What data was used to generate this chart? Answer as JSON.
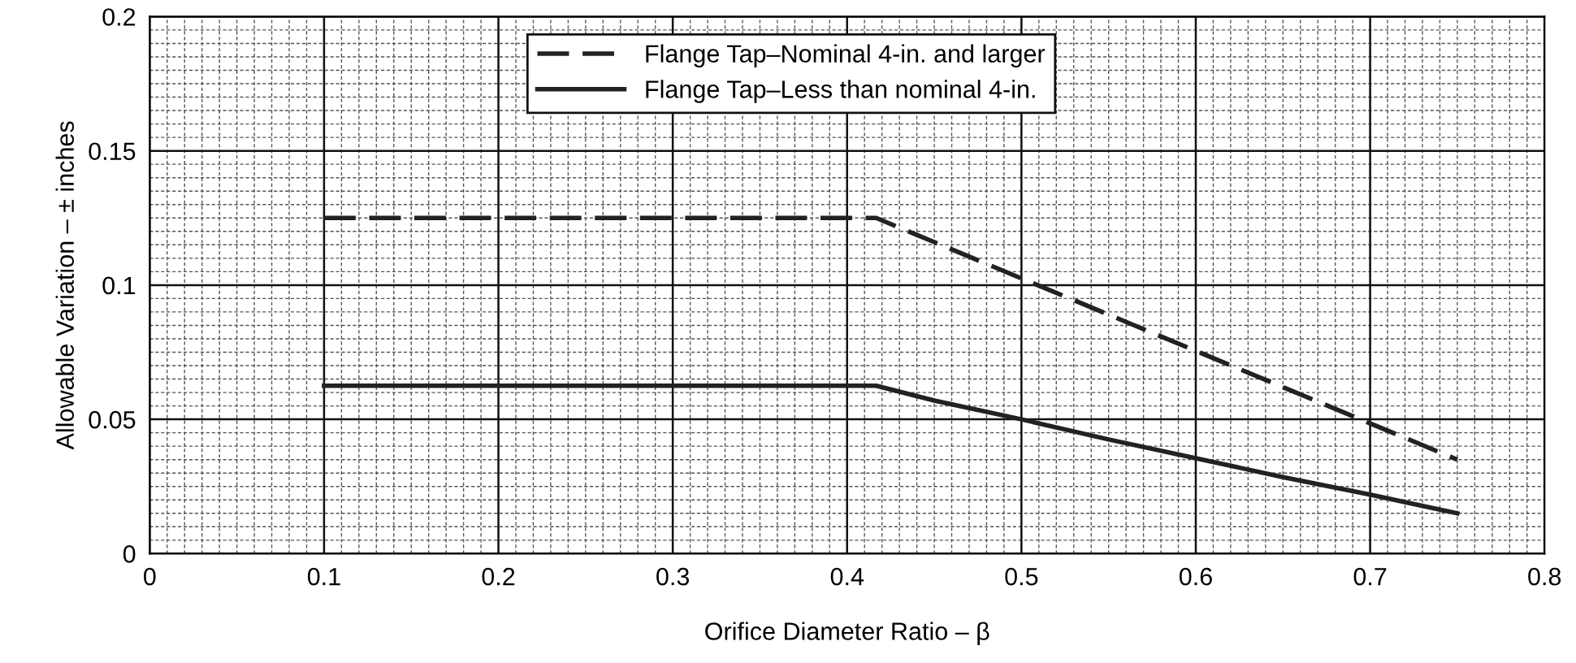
{
  "chart_data": {
    "type": "line",
    "xlabel": "Orifice Diameter Ratio – β",
    "ylabel": "Allowable Variation – ± inches",
    "xlim": [
      0,
      0.8
    ],
    "xticks": [
      0,
      0.1,
      0.2,
      0.3,
      0.4,
      0.5,
      0.6,
      0.7,
      0.8
    ],
    "ylim": [
      0,
      0.2
    ],
    "yticks": [
      0,
      0.05,
      0.1,
      0.15,
      0.2
    ],
    "grid": true,
    "legend": "top",
    "marker": "none",
    "series": [
      {
        "name": "Flange Tap–Nominal 4-in. and larger",
        "color": "#222222",
        "line_style": "dashed",
        "x": [
          0.1,
          0.4167,
          0.5,
          0.6,
          0.7,
          0.75
        ],
        "values": [
          0.125,
          0.125,
          0.1025,
          0.0755,
          0.0485,
          0.035
        ]
      },
      {
        "name": "Flange Tap–Less than nominal 4-in.",
        "color": "#222222",
        "line_style": "solid",
        "x": [
          0.1,
          0.4167,
          0.45,
          0.5,
          0.55,
          0.6,
          0.65,
          0.7,
          0.75
        ],
        "values": [
          0.0625,
          0.0625,
          0.057,
          0.05,
          0.0425,
          0.0355,
          0.0285,
          0.022,
          0.015
        ]
      }
    ]
  }
}
